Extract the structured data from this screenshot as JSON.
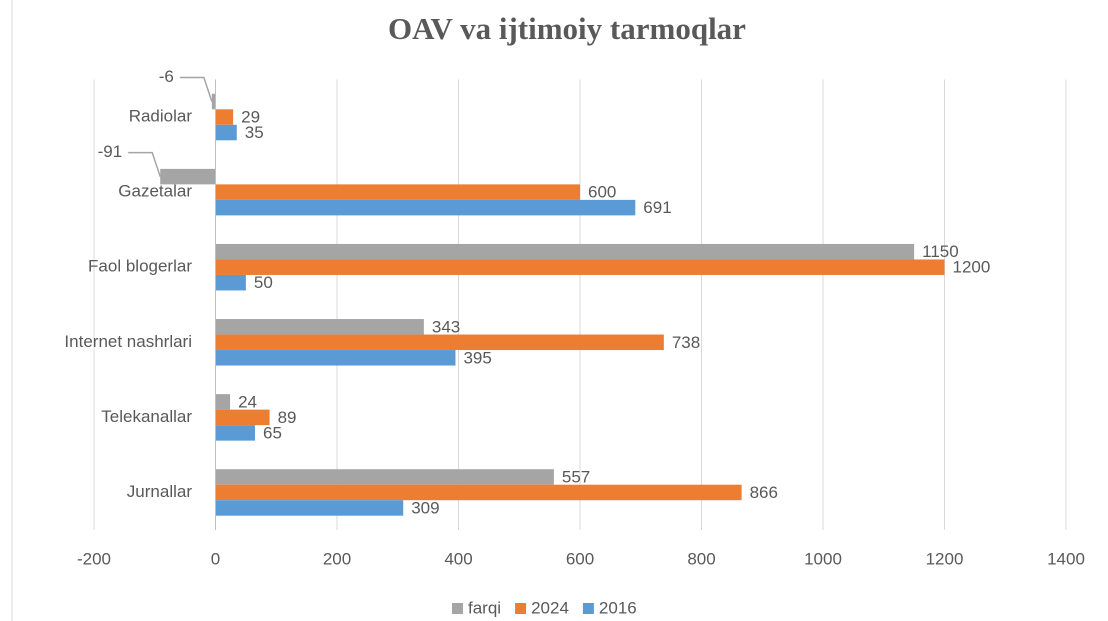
{
  "chart_data": {
    "type": "hbar",
    "title": "OAV va ijtimoiy tarmoqlar",
    "categories": [
      "Radiolar",
      "Gazetalar",
      "Faol blogerlar",
      "Internet nashrlari",
      "Telekanallar",
      "Jurnallar"
    ],
    "series": [
      {
        "name": "farqi",
        "color": "#a5a5a5",
        "values": [
          -6,
          -91,
          1150,
          343,
          24,
          557
        ]
      },
      {
        "name": "2024",
        "color": "#ed7d31",
        "values": [
          29,
          600,
          1200,
          738,
          89,
          866
        ]
      },
      {
        "name": "2016",
        "color": "#5b9bd5",
        "values": [
          35,
          691,
          50,
          395,
          65,
          309
        ]
      }
    ],
    "xlim": [
      -200,
      1400
    ],
    "xticks": [
      -200,
      0,
      200,
      400,
      600,
      800,
      1000,
      1200,
      1400
    ],
    "grid": true,
    "legend": "bottom"
  }
}
